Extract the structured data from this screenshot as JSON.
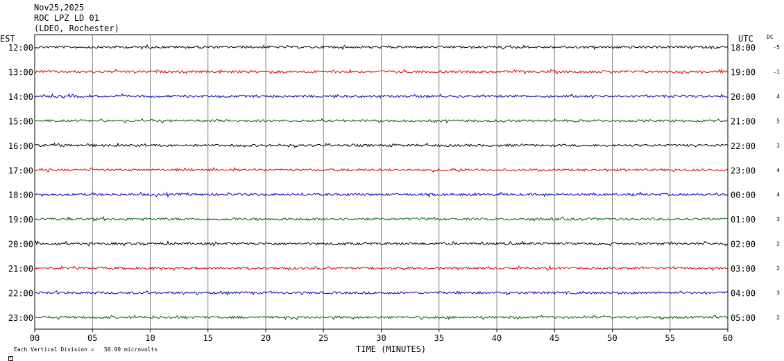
{
  "header": {
    "date": "Nov25,2025",
    "station": "ROC LPZ LD 01",
    "network": "(LDEO, Rochester)"
  },
  "left_axis_label": "EST",
  "right_axis_label": "UTC",
  "dc_label": "DC",
  "x_axis_label": "TIME (MINUTES)",
  "footer": {
    "scale_note": "Each Vertical Division =   50.00 microvolts",
    "logo_text": "LDEO"
  },
  "colors": {
    "cycle": [
      "#000000",
      "#e00000",
      "#0000c0",
      "#006000"
    ],
    "grid": "#808080"
  },
  "chart_data": {
    "type": "line",
    "x": {
      "min": 0,
      "max": 60,
      "ticks": [
        "00",
        "05",
        "10",
        "15",
        "20",
        "25",
        "30",
        "35",
        "40",
        "45",
        "50",
        "55",
        "60"
      ]
    },
    "rows": [
      {
        "est": "12:00",
        "utc": "18:00",
        "dc": "-5",
        "color": "#000000"
      },
      {
        "est": "13:00",
        "utc": "19:00",
        "dc": "-1",
        "color": "#e00000"
      },
      {
        "est": "14:00",
        "utc": "20:00",
        "dc": "4",
        "color": "#0000c0"
      },
      {
        "est": "15:00",
        "utc": "21:00",
        "dc": "5",
        "color": "#006000"
      },
      {
        "est": "16:00",
        "utc": "22:00",
        "dc": "3",
        "color": "#000000"
      },
      {
        "est": "17:00",
        "utc": "23:00",
        "dc": "4",
        "color": "#e00000"
      },
      {
        "est": "18:00",
        "utc": "00:00",
        "dc": "4",
        "color": "#0000c0"
      },
      {
        "est": "19:00",
        "utc": "01:00",
        "dc": "3",
        "color": "#006000"
      },
      {
        "est": "20:00",
        "utc": "02:00",
        "dc": "2",
        "color": "#000000"
      },
      {
        "est": "21:00",
        "utc": "03:00",
        "dc": "2",
        "color": "#e00000"
      },
      {
        "est": "22:00",
        "utc": "04:00",
        "dc": "3",
        "color": "#0000c0"
      },
      {
        "est": "23:00",
        "utc": "05:00",
        "dc": "2",
        "color": "#006000"
      }
    ],
    "grid": true
  }
}
